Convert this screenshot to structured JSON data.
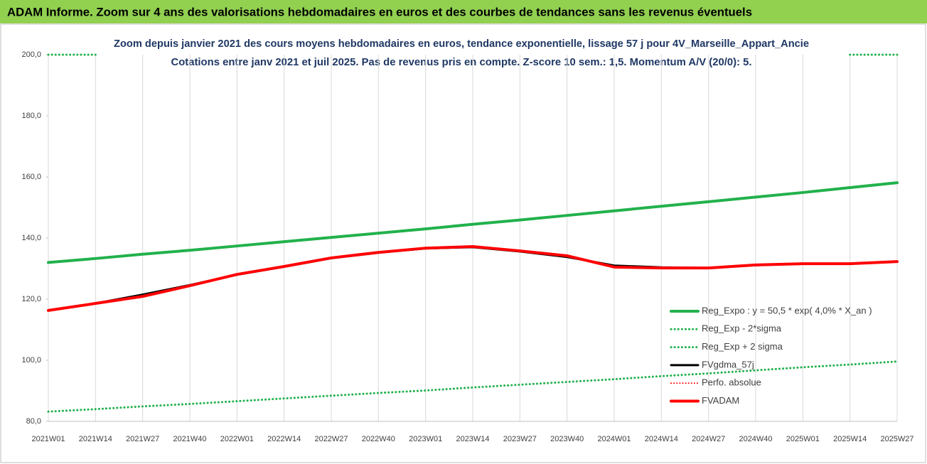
{
  "chart_data": {
    "type": "line",
    "title": "ADAM Informe. Zoom sur 4 ans des valorisations hebdomadaires en euros et des courbes de tendances sans les revenus éventuels",
    "subtitle": [
      "Zoom depuis janvier 2021 des cours moyens hebdomadaires en euros, tendance exponentielle, lissage 57 j pour 4V_Marseille_Appart_Ancie",
      "Cotations entre janv 2021 et juil 2025. Pas de revenus pris en compte. Z-score 10 sem.: 1,5. Momentum A/V (20/0): 5."
    ],
    "categories": [
      "2021W01",
      "2021W14",
      "2021W27",
      "2021W40",
      "2022W01",
      "2022W14",
      "2022W27",
      "2022W40",
      "2023W01",
      "2023W14",
      "2023W27",
      "2023W40",
      "2024W01",
      "2024W14",
      "2024W27",
      "2024W40",
      "2025W01",
      "2025W14",
      "2025W27"
    ],
    "ylim": [
      80,
      200
    ],
    "yticks": [
      {
        "value": 80,
        "label": "80,0"
      },
      {
        "value": 100,
        "label": "100,0"
      },
      {
        "value": 120,
        "label": "120,0"
      },
      {
        "value": 140,
        "label": "140,0"
      },
      {
        "value": 160,
        "label": "160,0"
      },
      {
        "value": 180,
        "label": "180,0"
      },
      {
        "value": 200,
        "label": "200,0"
      }
    ],
    "grid": "vertical",
    "legend": "bottom-right",
    "series": [
      {
        "name": "Reg_Expo : y = 50,5 * exp( 4,0% *  X_an )",
        "color": "#22b14c",
        "dash": "solid",
        "width": 4,
        "values": [
          132.0,
          133.3,
          134.7,
          136.0,
          137.4,
          138.8,
          140.2,
          141.6,
          143.0,
          144.5,
          145.9,
          147.4,
          148.9,
          150.4,
          151.9,
          153.4,
          154.9,
          156.5,
          158.1
        ]
      },
      {
        "name": "Reg_Exp - 2*sigma",
        "color": "#22b14c",
        "dash": "dotted",
        "width": 3,
        "values": [
          83.2,
          84.0,
          84.9,
          85.7,
          86.6,
          87.5,
          88.4,
          89.3,
          90.1,
          91.1,
          92.0,
          92.9,
          93.8,
          94.8,
          95.7,
          96.7,
          97.7,
          98.6,
          99.6
        ]
      },
      {
        "name": "Reg_Exp + 2 sigma",
        "color": "#22b14c",
        "dash": "dotted",
        "width": 3,
        "values": [
          200,
          200,
          null,
          null,
          null,
          null,
          null,
          null,
          null,
          null,
          null,
          null,
          null,
          null,
          null,
          null,
          null,
          200,
          200
        ]
      },
      {
        "name": "FVgdma_57j",
        "color": "#000000",
        "dash": "solid",
        "width": 3,
        "values": [
          116.3,
          118.6,
          121.5,
          124.6,
          128.0,
          130.6,
          133.4,
          135.2,
          136.6,
          137.0,
          135.6,
          133.8,
          131.0,
          130.4,
          130.2,
          131.1,
          131.6,
          131.6,
          132.3
        ]
      },
      {
        "name": "Perfo. absolue",
        "color": "#ff0000",
        "dash": "dotted",
        "width": 2,
        "values": [
          116.3,
          118.6,
          120.9,
          124.4,
          128.1,
          130.7,
          133.5,
          135.3,
          136.7,
          137.2,
          135.8,
          134.2,
          130.5,
          130.2,
          130.2,
          131.2,
          131.6,
          131.6,
          132.3
        ]
      },
      {
        "name": "FVADAM",
        "color": "#ff0000",
        "dash": "solid",
        "width": 4,
        "values": [
          116.3,
          118.6,
          120.9,
          124.4,
          128.1,
          130.7,
          133.5,
          135.3,
          136.7,
          137.2,
          135.8,
          134.2,
          130.5,
          130.2,
          130.2,
          131.2,
          131.6,
          131.6,
          132.3
        ]
      }
    ]
  }
}
